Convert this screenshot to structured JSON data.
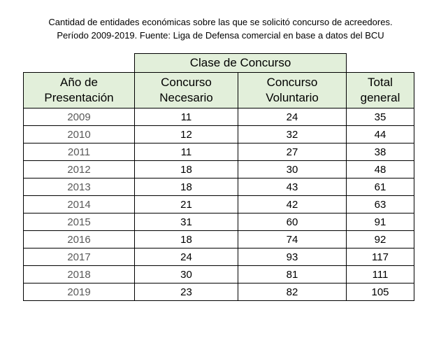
{
  "caption": {
    "line1": "Cantidad de entidades económicas sobre las que se solicitó concurso de acreedores.",
    "line2": "Período 2009-2019.  Fuente: Liga de Defensa comercial en base a datos del BCU"
  },
  "table": {
    "group_header": "Clase de Concurso",
    "headers": {
      "year": [
        "Año de",
        "Presentación"
      ],
      "necesario": [
        "Concurso",
        "Necesario"
      ],
      "voluntario": [
        "Concurso",
        "Voluntario"
      ],
      "total": [
        "Total",
        "general"
      ]
    },
    "rows": [
      {
        "year": "2009",
        "necesario": "11",
        "voluntario": "24",
        "total": "35"
      },
      {
        "year": "2010",
        "necesario": "12",
        "voluntario": "32",
        "total": "44"
      },
      {
        "year": "2011",
        "necesario": "11",
        "voluntario": "27",
        "total": "38"
      },
      {
        "year": "2012",
        "necesario": "18",
        "voluntario": "30",
        "total": "48"
      },
      {
        "year": "2013",
        "necesario": "18",
        "voluntario": "43",
        "total": "61"
      },
      {
        "year": "2014",
        "necesario": "21",
        "voluntario": "42",
        "total": "63"
      },
      {
        "year": "2015",
        "necesario": "31",
        "voluntario": "60",
        "total": "91"
      },
      {
        "year": "2016",
        "necesario": "18",
        "voluntario": "74",
        "total": "92"
      },
      {
        "year": "2017",
        "necesario": "24",
        "voluntario": "93",
        "total": "117"
      },
      {
        "year": "2018",
        "necesario": "30",
        "voluntario": "81",
        "total": "111"
      },
      {
        "year": "2019",
        "necesario": "23",
        "voluntario": "82",
        "total": "105"
      }
    ]
  },
  "colors": {
    "header_fill": "#e2efda",
    "year_text": "#595959"
  }
}
